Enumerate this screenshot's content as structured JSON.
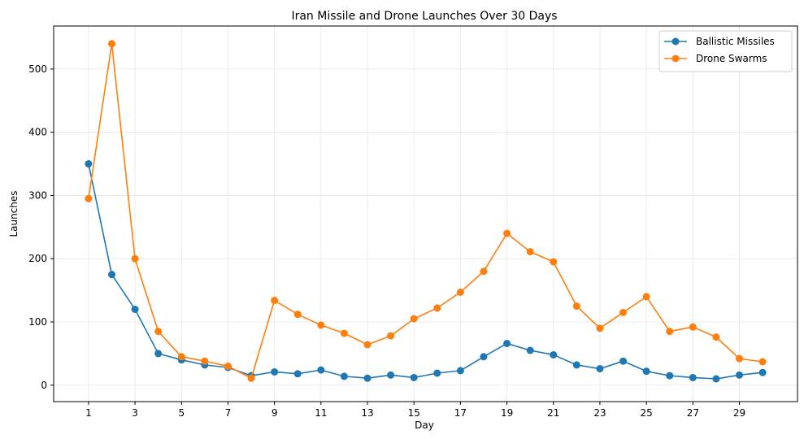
{
  "chart_data": {
    "type": "line",
    "title": "Iran Missile and Drone Launches Over 30 Days",
    "xlabel": "Day",
    "ylabel": "Launches",
    "x": [
      1,
      2,
      3,
      4,
      5,
      6,
      7,
      8,
      9,
      10,
      11,
      12,
      13,
      14,
      15,
      16,
      17,
      18,
      19,
      20,
      21,
      22,
      23,
      24,
      25,
      26,
      27,
      28,
      29,
      30
    ],
    "x_ticks": [
      "1",
      "3",
      "5",
      "7",
      "9",
      "11",
      "13",
      "15",
      "17",
      "19",
      "21",
      "23",
      "25",
      "27",
      "29"
    ],
    "y_ticks": [
      "0",
      "100",
      "200",
      "300",
      "400",
      "500"
    ],
    "xlim": [
      -0.5,
      31.5
    ],
    "ylim": [
      -26,
      568
    ],
    "grid": true,
    "legend_position": "top-right",
    "series": [
      {
        "name": "Ballistic Missiles",
        "color": "#1f77b4",
        "values": [
          350,
          175,
          120,
          50,
          40,
          32,
          28,
          15,
          21,
          18,
          24,
          14,
          11,
          16,
          12,
          19,
          23,
          45,
          66,
          55,
          48,
          32,
          26,
          38,
          22,
          15,
          12,
          10,
          16,
          20
        ]
      },
      {
        "name": "Drone Swarms",
        "color": "#ff7f0e",
        "values": [
          295,
          540,
          200,
          85,
          45,
          38,
          30,
          11,
          134,
          112,
          95,
          82,
          64,
          78,
          105,
          122,
          147,
          180,
          240,
          211,
          195,
          125,
          90,
          115,
          140,
          85,
          92,
          76,
          42,
          37
        ]
      }
    ]
  }
}
